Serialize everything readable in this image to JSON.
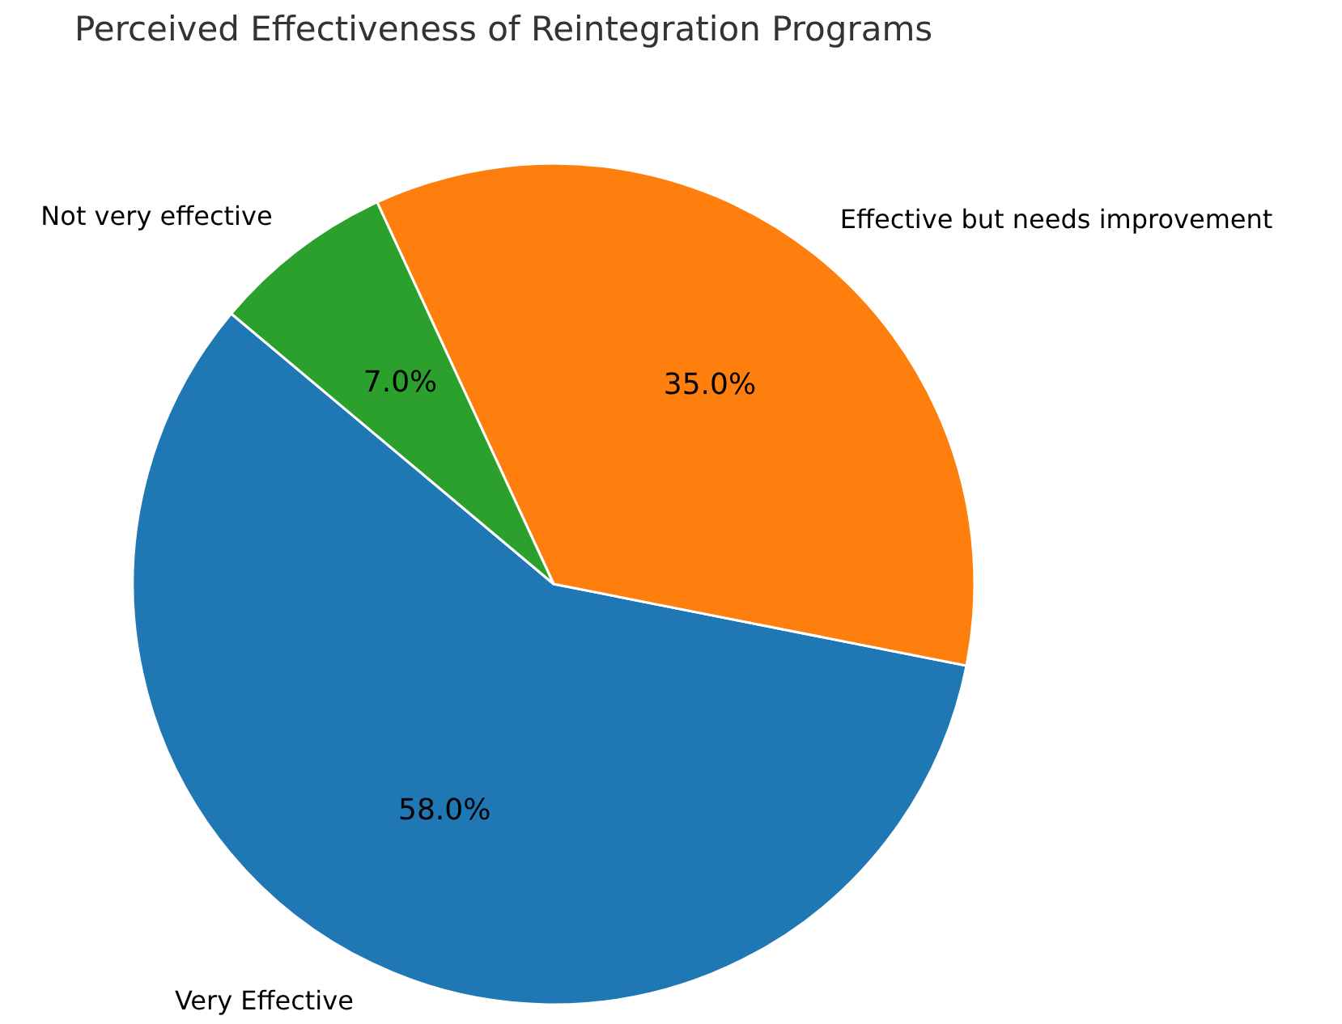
{
  "chart_data": {
    "type": "pie",
    "title": "Perceived Effectiveness of Reintegration Programs",
    "categories": [
      "Very Effective",
      "Effective but needs improvement",
      "Not very effective"
    ],
    "values": [
      58,
      35,
      7
    ],
    "colors": [
      "#1f77b4",
      "#ff7f0e",
      "#2ca02c"
    ],
    "value_labels": [
      "58.0%",
      "35.0%",
      "7.0%"
    ]
  }
}
